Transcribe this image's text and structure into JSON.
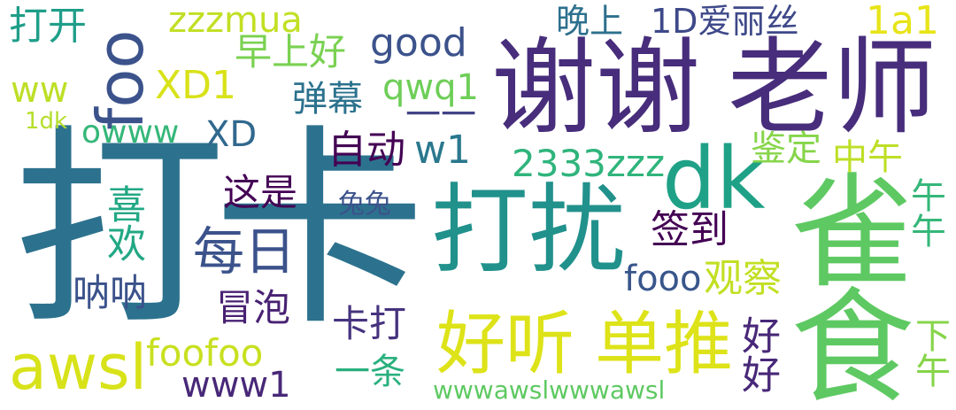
{
  "words": [
    {
      "text": "打卡",
      "color": "#2c728e"
    },
    {
      "text": "谢谢",
      "color": "#472d7b"
    },
    {
      "text": "老师",
      "color": "#472d7b"
    },
    {
      "text": "雀食",
      "color": "#5ec962"
    },
    {
      "text": "打扰",
      "color": "#21918c"
    },
    {
      "text": "dk",
      "color": "#1fa187"
    },
    {
      "text": "foo",
      "color": "#3b528b"
    },
    {
      "text": "好听",
      "color": "#dde318"
    },
    {
      "text": "单推",
      "color": "#dde318"
    },
    {
      "text": "awsl",
      "color": "#d8e219"
    },
    {
      "text": "每日",
      "color": "#3b528b"
    },
    {
      "text": "zzzmua",
      "color": "#c2df23"
    },
    {
      "text": "打开",
      "color": "#1f9e89"
    },
    {
      "text": "晚上",
      "color": "#2d708e"
    },
    {
      "text": "1D爱丽丝",
      "color": "#3e4989"
    },
    {
      "text": "1a1",
      "color": "#e7e419"
    },
    {
      "text": "早上好",
      "color": "#7ad151"
    },
    {
      "text": "good",
      "color": "#3b528b"
    },
    {
      "text": "XD1",
      "color": "#d8e219"
    },
    {
      "text": "ww",
      "color": "#bddf26"
    },
    {
      "text": "qwq1",
      "color": "#6ece58"
    },
    {
      "text": "弹幕",
      "color": "#2c728e"
    },
    {
      "text": "一一",
      "color": "#414487"
    },
    {
      "text": "1dk",
      "color": "#b5de2b"
    },
    {
      "text": "owww",
      "color": "#35b779"
    },
    {
      "text": "XD",
      "color": "#31688e"
    },
    {
      "text": "自动",
      "color": "#440154"
    },
    {
      "text": "w1",
      "color": "#2a788e"
    },
    {
      "text": "鉴定",
      "color": "#86d549"
    },
    {
      "text": "中午",
      "color": "#bddf26"
    },
    {
      "text": "2333zzz",
      "color": "#2fb47c"
    },
    {
      "text": "这是",
      "color": "#440154"
    },
    {
      "text": "喜欢",
      "color": "#22a884"
    },
    {
      "text": "兔兔",
      "color": "#3b528b"
    },
    {
      "text": "午午",
      "color": "#35b779"
    },
    {
      "text": "签到",
      "color": "#440154"
    },
    {
      "text": "呐呐",
      "color": "#3b528b"
    },
    {
      "text": "冒泡",
      "color": "#482173"
    },
    {
      "text": "fooo",
      "color": "#39568c"
    },
    {
      "text": "观察",
      "color": "#c2df23"
    },
    {
      "text": "卡打",
      "color": "#46337e"
    },
    {
      "text": "foofoo",
      "color": "#c8e020"
    },
    {
      "text": "好好",
      "color": "#482878"
    },
    {
      "text": "下午",
      "color": "#86d549"
    },
    {
      "text": "www1",
      "color": "#482878"
    },
    {
      "text": "一条",
      "color": "#2ab07f"
    },
    {
      "text": "wwwawslwwwawsl",
      "color": "#5ec962"
    }
  ]
}
